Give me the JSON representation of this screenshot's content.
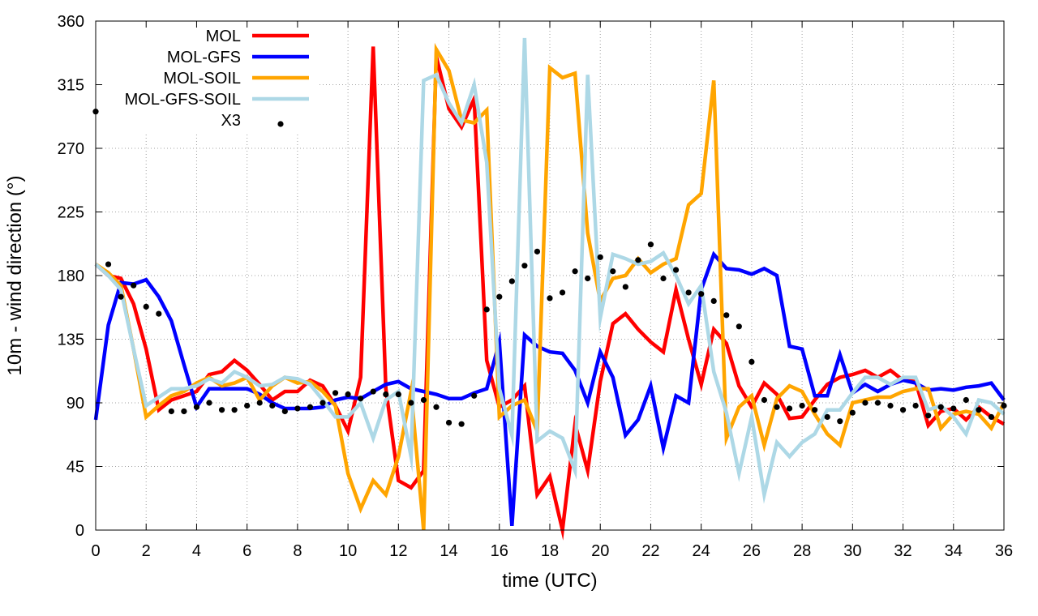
{
  "chart_data": {
    "type": "line",
    "title": "",
    "xlabel": "time (UTC)",
    "ylabel": "10m - wind direction (°)",
    "xlim": [
      0,
      36
    ],
    "ylim": [
      0,
      360
    ],
    "xticks": [
      0,
      2,
      4,
      6,
      8,
      10,
      12,
      14,
      16,
      18,
      20,
      22,
      24,
      26,
      28,
      30,
      32,
      34,
      36
    ],
    "yticks": [
      0,
      45,
      90,
      135,
      180,
      225,
      270,
      315,
      360
    ],
    "grid": true,
    "legend_position": "top-left",
    "series": [
      {
        "name": "MOL",
        "color": "#ff0000",
        "style": "line",
        "x": [
          0,
          0.5,
          1,
          1.5,
          2,
          2.5,
          3,
          3.5,
          4,
          4.5,
          5,
          5.5,
          6,
          6.5,
          7,
          7.5,
          8,
          8.5,
          9,
          9.5,
          10,
          10.5,
          11,
          11.5,
          12,
          12.5,
          13,
          13.5,
          14,
          14.5,
          15,
          15.5,
          16,
          16.5,
          17,
          17.5,
          18,
          18.5,
          19,
          19.5,
          20,
          20.5,
          21,
          21.5,
          22,
          22.5,
          23,
          23.5,
          24,
          24.5,
          25,
          25.5,
          26,
          26.5,
          27,
          27.5,
          28,
          28.5,
          29,
          29.5,
          30,
          30.5,
          31,
          31.5,
          32,
          32.5,
          33,
          33.5,
          34,
          34.5,
          35,
          35.5,
          36
        ],
        "y": [
          188,
          180,
          178,
          160,
          128,
          85,
          92,
          95,
          98,
          110,
          112,
          120,
          113,
          103,
          92,
          98,
          98,
          106,
          102,
          88,
          70,
          108,
          342,
          100,
          35,
          30,
          42,
          335,
          298,
          285,
          305,
          120,
          87,
          92,
          102,
          25,
          38,
          0,
          75,
          42,
          105,
          146,
          153,
          142,
          133,
          126,
          170,
          135,
          103,
          142,
          132,
          102,
          87,
          104,
          96,
          79,
          80,
          92,
          103,
          108,
          110,
          113,
          108,
          113,
          106,
          105,
          74,
          84,
          86,
          78,
          87,
          80,
          75
        ]
      },
      {
        "name": "MOL-GFS",
        "color": "#0000ff",
        "style": "line",
        "x": [
          0,
          0.5,
          1,
          1.5,
          2,
          2.5,
          3,
          3.5,
          4,
          4.5,
          5,
          5.5,
          6,
          6.5,
          7,
          7.5,
          8,
          8.5,
          9,
          9.5,
          10,
          10.5,
          11,
          11.5,
          12,
          12.5,
          13,
          13.5,
          14,
          14.5,
          15,
          15.5,
          16,
          16.5,
          17,
          17.5,
          18,
          18.5,
          19,
          19.5,
          20,
          20.5,
          21,
          21.5,
          22,
          22.5,
          23,
          23.5,
          24,
          24.5,
          25,
          25.5,
          26,
          26.5,
          27,
          27.5,
          28,
          28.5,
          29,
          29.5,
          30,
          30.5,
          31,
          31.5,
          32,
          32.5,
          33,
          33.5,
          34,
          34.5,
          35,
          35.5,
          36
        ],
        "y": [
          78,
          145,
          175,
          174,
          177,
          165,
          148,
          117,
          87,
          100,
          100,
          100,
          100,
          96,
          90,
          86,
          86,
          86,
          87,
          92,
          94,
          93,
          98,
          103,
          105,
          100,
          98,
          96,
          93,
          93,
          97,
          100,
          133,
          3,
          138,
          130,
          126,
          125,
          113,
          90,
          126,
          108,
          67,
          78,
          102,
          58,
          95,
          90,
          170,
          195,
          185,
          184,
          181,
          185,
          180,
          130,
          128,
          95,
          95,
          124,
          97,
          103,
          98,
          103,
          106,
          104,
          99,
          100,
          99,
          101,
          102,
          104,
          92
        ]
      },
      {
        "name": "MOL-SOIL",
        "color": "#ffa500",
        "style": "line",
        "x": [
          0,
          0.5,
          1,
          1.5,
          2,
          2.5,
          3,
          3.5,
          4,
          4.5,
          5,
          5.5,
          6,
          6.5,
          7,
          7.5,
          8,
          8.5,
          9,
          9.5,
          10,
          10.5,
          11,
          11.5,
          12,
          12.5,
          13,
          13.5,
          14,
          14.5,
          15,
          15.5,
          16,
          16.5,
          17,
          17.5,
          18,
          18.5,
          19,
          19.5,
          20,
          20.5,
          21,
          21.5,
          22,
          22.5,
          23,
          23.5,
          24,
          24.5,
          25,
          25.5,
          26,
          26.5,
          27,
          27.5,
          28,
          28.5,
          29,
          29.5,
          30,
          30.5,
          31,
          31.5,
          32,
          32.5,
          33,
          33.5,
          34,
          34.5,
          35,
          35.5,
          36
        ],
        "y": [
          188,
          182,
          173,
          128,
          80,
          88,
          95,
          98,
          104,
          108,
          102,
          104,
          108,
          92,
          102,
          108,
          104,
          105,
          98,
          88,
          40,
          15,
          35,
          25,
          52,
          98,
          0,
          340,
          325,
          290,
          288,
          297,
          80,
          88,
          92,
          70,
          327,
          320,
          323,
          210,
          162,
          178,
          180,
          192,
          182,
          188,
          192,
          230,
          238,
          318,
          65,
          87,
          95,
          60,
          93,
          102,
          98,
          82,
          68,
          60,
          90,
          92,
          94,
          94,
          98,
          100,
          100,
          72,
          82,
          84,
          82,
          72,
          90
        ]
      },
      {
        "name": "MOL-GFS-SOIL",
        "color": "#add8e6",
        "style": "line",
        "x": [
          0,
          0.5,
          1,
          1.5,
          2,
          2.5,
          3,
          3.5,
          4,
          4.5,
          5,
          5.5,
          6,
          6.5,
          7,
          7.5,
          8,
          8.5,
          9,
          9.5,
          10,
          10.5,
          11,
          11.5,
          12,
          12.5,
          13,
          13.5,
          14,
          14.5,
          15,
          15.5,
          16,
          16.5,
          17,
          17.5,
          18,
          18.5,
          19,
          19.5,
          20,
          20.5,
          21,
          21.5,
          22,
          22.5,
          23,
          23.5,
          24,
          24.5,
          25,
          25.5,
          26,
          26.5,
          27,
          27.5,
          28,
          28.5,
          29,
          29.5,
          30,
          30.5,
          31,
          31.5,
          32,
          32.5,
          33,
          33.5,
          34,
          34.5,
          35,
          35.5,
          36
        ],
        "y": [
          188,
          180,
          170,
          128,
          88,
          94,
          100,
          100,
          102,
          107,
          104,
          112,
          108,
          102,
          103,
          108,
          107,
          103,
          92,
          80,
          80,
          90,
          65,
          92,
          98,
          52,
          318,
          322,
          302,
          288,
          315,
          260,
          100,
          67,
          348,
          63,
          70,
          65,
          42,
          322,
          150,
          195,
          192,
          188,
          190,
          196,
          180,
          160,
          173,
          112,
          83,
          40,
          80,
          25,
          62,
          52,
          62,
          68,
          85,
          85,
          97,
          108,
          108,
          103,
          108,
          108,
          85,
          88,
          80,
          68,
          92,
          90,
          82
        ]
      },
      {
        "name": "X3",
        "color": "#000000",
        "style": "points",
        "x": [
          0,
          0.5,
          1,
          1.5,
          2,
          2.5,
          3,
          3.5,
          4,
          4.5,
          5,
          5.5,
          6,
          6.5,
          7,
          7.5,
          8,
          8.5,
          9,
          9.5,
          10,
          10.5,
          11,
          11.5,
          12,
          12.5,
          13,
          13.5,
          14,
          14.5,
          15,
          15.5,
          16,
          16.5,
          17,
          17.5,
          18,
          18.5,
          19,
          19.5,
          20,
          20.5,
          21,
          21.5,
          22,
          22.5,
          23,
          23.5,
          24,
          24.5,
          25,
          25.5,
          26,
          26.5,
          27,
          27.5,
          28,
          28.5,
          29,
          29.5,
          30,
          30.5,
          31,
          31.5,
          32,
          32.5,
          33,
          33.5,
          34,
          34.5,
          35,
          35.5,
          36
        ],
        "y": [
          296,
          188,
          165,
          173,
          158,
          153,
          84,
          84,
          87,
          90,
          85,
          85,
          88,
          90,
          88,
          84,
          86,
          87,
          90,
          97,
          96,
          93,
          98,
          96,
          96,
          90,
          92,
          87,
          76,
          75,
          95,
          156,
          165,
          176,
          187,
          197,
          164,
          168,
          183,
          178,
          193,
          183,
          172,
          191,
          202,
          178,
          184,
          168,
          167,
          162,
          152,
          144,
          119,
          92,
          87,
          86,
          88,
          85,
          80,
          77,
          83,
          90,
          90,
          88,
          85,
          88,
          81,
          87,
          86,
          92,
          85,
          80,
          88
        ]
      }
    ]
  }
}
